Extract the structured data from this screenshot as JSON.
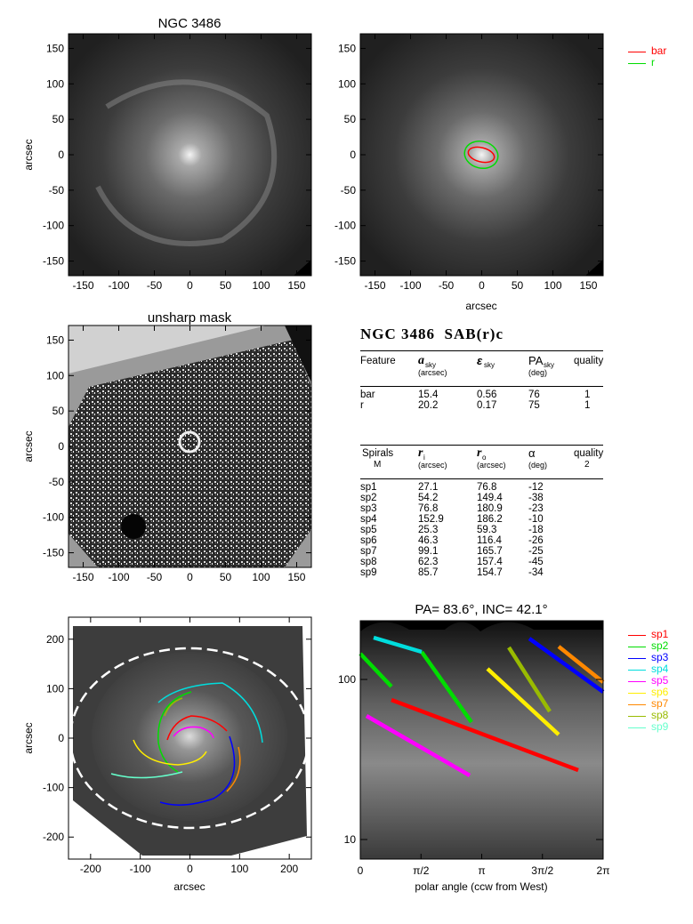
{
  "panel1": {
    "title": "NGC 3486",
    "ylabel": "arcsec",
    "xticks": [
      "-150",
      "-100",
      "-50",
      "0",
      "50",
      "100",
      "150"
    ],
    "yticks": [
      "150",
      "100",
      "50",
      "0",
      "-50",
      "-100",
      "-150"
    ]
  },
  "panel2": {
    "xlabel": "arcsec",
    "xticks": [
      "-150",
      "-100",
      "-50",
      "0",
      "50",
      "100",
      "150"
    ],
    "yticks": [
      "150",
      "100",
      "50",
      "0",
      "-50",
      "-100",
      "-150"
    ],
    "legend": [
      {
        "label": "bar",
        "color": "#ff0000"
      },
      {
        "label": "r",
        "color": "#00dd00"
      }
    ]
  },
  "panel3": {
    "title": "unsharp mask",
    "ylabel": "arcsec",
    "xticks": [
      "-150",
      "-100",
      "-50",
      "0",
      "50",
      "100",
      "150"
    ],
    "yticks": [
      "150",
      "100",
      "50",
      "0",
      "-50",
      "-100",
      "-150"
    ]
  },
  "table": {
    "heading_name": "NGC 3486",
    "heading_class": "SAB(r)c",
    "feature_header": {
      "col1": "Feature",
      "col2_sym": "a",
      "col2_sub": "sky",
      "col2_unit": "(arcsec)",
      "col3_sym": "ε",
      "col3_sub": "sky",
      "col4_sym": "PA",
      "col4_sub": "sky",
      "col4_unit": "(deg)",
      "col5": "quality"
    },
    "features": [
      {
        "name": "bar",
        "a": "15.4",
        "e": "0.56",
        "pa": "76",
        "q": "1"
      },
      {
        "name": "r",
        "a": "20.2",
        "e": "0.17",
        "pa": "75",
        "q": "1"
      }
    ],
    "spiral_header": {
      "col1": "Spirals",
      "col1b": "M",
      "col2_sym": "r",
      "col2_sub": "i",
      "col2_unit": "(arcsec)",
      "col3_sym": "r",
      "col3_sub": "o",
      "col3_unit": "(arcsec)",
      "col4_sym": "α",
      "col4_unit": "(deg)",
      "col5": "quality",
      "col5b": "2"
    },
    "spirals": [
      {
        "name": "sp1",
        "ri": "27.1",
        "ro": "76.8",
        "alpha": "-12"
      },
      {
        "name": "sp2",
        "ri": "54.2",
        "ro": "149.4",
        "alpha": "-38"
      },
      {
        "name": "sp3",
        "ri": "76.8",
        "ro": "180.9",
        "alpha": "-23"
      },
      {
        "name": "sp4",
        "ri": "152.9",
        "ro": "186.2",
        "alpha": "-10"
      },
      {
        "name": "sp5",
        "ri": "25.3",
        "ro": "59.3",
        "alpha": "-18"
      },
      {
        "name": "sp6",
        "ri": "46.3",
        "ro": "116.4",
        "alpha": "-26"
      },
      {
        "name": "sp7",
        "ri": "99.1",
        "ro": "165.7",
        "alpha": "-25"
      },
      {
        "name": "sp8",
        "ri": "62.3",
        "ro": "157.4",
        "alpha": "-45"
      },
      {
        "name": "sp9",
        "ri": "85.7",
        "ro": "154.7",
        "alpha": "-34"
      }
    ]
  },
  "panel5": {
    "ylabel": "arcsec",
    "xlabel": "arcsec",
    "xticks": [
      "-200",
      "-100",
      "0",
      "100",
      "200"
    ],
    "yticks": [
      "200",
      "100",
      "0",
      "-100",
      "-200"
    ]
  },
  "panel6": {
    "title": "PA=  83.6°, INC=  42.1°",
    "xlabel": "polar angle (ccw from West)",
    "xticks": [
      "0",
      "π/2",
      "π",
      "3π/2",
      "2π"
    ],
    "yticks": [
      "100",
      "10"
    ],
    "legend": [
      {
        "label": "sp1",
        "color": "#ff0000"
      },
      {
        "label": "sp2",
        "color": "#00dd00"
      },
      {
        "label": "sp3",
        "color": "#0000ff"
      },
      {
        "label": "sp4",
        "color": "#00dddd"
      },
      {
        "label": "sp5",
        "color": "#ff00ff"
      },
      {
        "label": "sp6",
        "color": "#ffee00"
      },
      {
        "label": "sp7",
        "color": "#ff8800"
      },
      {
        "label": "sp8",
        "color": "#99bb00"
      },
      {
        "label": "sp9",
        "color": "#66ffcc"
      }
    ]
  }
}
